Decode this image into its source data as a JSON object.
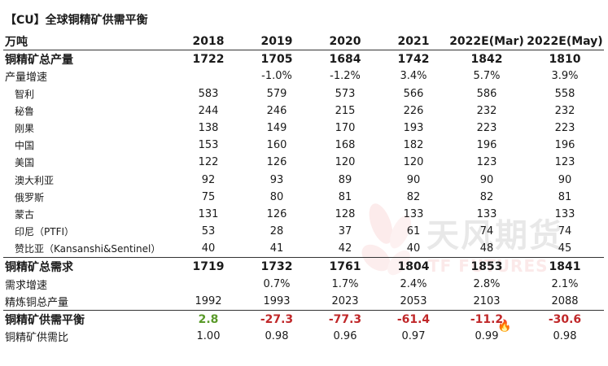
{
  "title": "【CU】全球铜精矿供需平衡",
  "header": [
    "万吨",
    "2018",
    "2019",
    "2020",
    "2021",
    "2022E(Mar)",
    "2022E(May)"
  ],
  "rows": [
    {
      "label": "铜精矿总产量",
      "style": "bold",
      "values": [
        "1722",
        "1705",
        "1684",
        "1742",
        "1842",
        "1810"
      ]
    },
    {
      "label": "产量增速",
      "style": "label",
      "values": [
        "",
        "-1.0%",
        "-1.2%",
        "3.4%",
        "5.7%",
        "3.9%"
      ]
    },
    {
      "label": "智利",
      "style": "sub",
      "values": [
        "583",
        "579",
        "573",
        "566",
        "586",
        "558"
      ]
    },
    {
      "label": "秘鲁",
      "style": "sub",
      "values": [
        "244",
        "246",
        "215",
        "226",
        "232",
        "232"
      ]
    },
    {
      "label": "刚果",
      "style": "sub",
      "values": [
        "138",
        "149",
        "170",
        "193",
        "223",
        "223"
      ]
    },
    {
      "label": "中国",
      "style": "sub",
      "values": [
        "153",
        "160",
        "168",
        "182",
        "196",
        "196"
      ]
    },
    {
      "label": "美国",
      "style": "sub",
      "values": [
        "122",
        "126",
        "120",
        "120",
        "123",
        "123"
      ]
    },
    {
      "label": "澳大利亚",
      "style": "sub",
      "values": [
        "92",
        "93",
        "89",
        "90",
        "90",
        "90"
      ]
    },
    {
      "label": "俄罗斯",
      "style": "sub",
      "values": [
        "75",
        "80",
        "81",
        "82",
        "82",
        "81"
      ]
    },
    {
      "label": "蒙古",
      "style": "sub",
      "values": [
        "131",
        "126",
        "128",
        "133",
        "133",
        "133"
      ]
    },
    {
      "label": "印尼（PTFI）",
      "style": "sub",
      "values": [
        "53",
        "28",
        "37",
        "61",
        "74",
        "74"
      ]
    },
    {
      "label": "赞比亚（Kansanshi&Sentinel）",
      "style": "sub",
      "values": [
        "40",
        "41",
        "42",
        "40",
        "48",
        "45"
      ]
    },
    {
      "label": "铜精矿总需求",
      "style": "bold",
      "values": [
        "1719",
        "1732",
        "1761",
        "1804",
        "1853",
        "1841"
      ]
    },
    {
      "label": "需求增速",
      "style": "label",
      "values": [
        "",
        "0.7%",
        "1.7%",
        "2.4%",
        "2.8%",
        "2.1%"
      ]
    },
    {
      "label": "精炼铜总产量",
      "style": "label",
      "values": [
        "1992",
        "1993",
        "2023",
        "2053",
        "2103",
        "2088"
      ]
    },
    {
      "label": "铜精矿供需平衡",
      "style": "bold",
      "values": [
        "2.8",
        "-27.3",
        "-77.3",
        "-61.4",
        "-11.2",
        "-30.6"
      ]
    },
    {
      "label": "铜精矿供需比",
      "style": "label",
      "values": [
        "1.00",
        "0.98",
        "0.96",
        "0.97",
        "0.99",
        "0.98"
      ]
    }
  ],
  "colors": {
    "positive": "#5a9a2a",
    "negative": "#c0282a"
  },
  "watermark": {
    "cn": "天风期货",
    "en": "TF FUTURES"
  }
}
